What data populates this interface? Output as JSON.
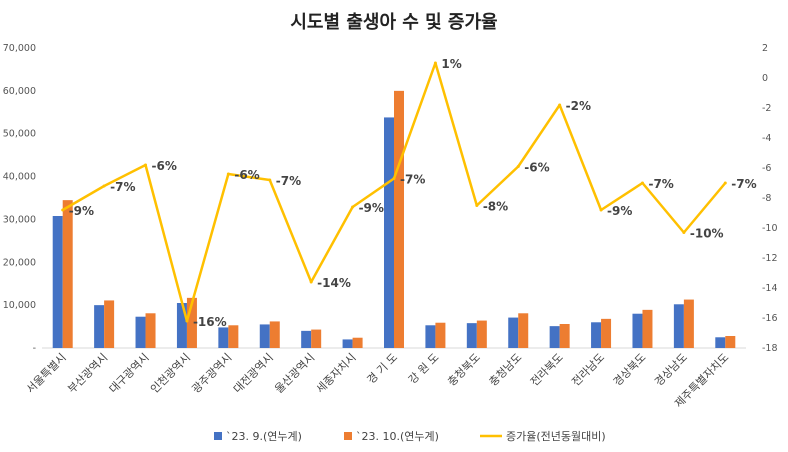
{
  "chart_data": {
    "type": "bar",
    "title": "시도별 출생아 수 및 증가율",
    "categories": [
      "서울특별시",
      "부산광역시",
      "대구광역시",
      "인천광역시",
      "광주광역시",
      "대전광역시",
      "울산광역시",
      "세종자치시",
      "경 기 도",
      "강 원 도",
      "충청북도",
      "충청남도",
      "전라북도",
      "전라남도",
      "경상북도",
      "경상남도",
      "제주특별자치도"
    ],
    "series": [
      {
        "name": "`23. 9.(연누계)",
        "color": "#4472C4",
        "axis": "left",
        "values": [
          30800,
          10000,
          7300,
          10500,
          4800,
          5500,
          4000,
          2000,
          53800,
          5300,
          5800,
          7100,
          5100,
          6000,
          8000,
          10200,
          2500
        ]
      },
      {
        "name": "`23. 10.(연누계)",
        "color": "#ED7D31",
        "axis": "left",
        "values": [
          34500,
          11100,
          8100,
          11700,
          5300,
          6200,
          4300,
          2400,
          60000,
          5900,
          6400,
          8100,
          5600,
          6800,
          8900,
          11300,
          2800
        ]
      },
      {
        "name": "증가율(전년동월대비)",
        "color": "#FFC000",
        "type": "line",
        "axis": "right",
        "values": [
          -8.8,
          -7.2,
          -5.8,
          -16.2,
          -6.4,
          -6.8,
          -13.6,
          -8.6,
          -6.7,
          1.0,
          -8.5,
          -5.9,
          -1.8,
          -8.8,
          -7.0,
          -10.3,
          -7.0
        ]
      }
    ],
    "pct_labels": [
      "-9%",
      "-7%",
      "-6%",
      "-16%",
      "-6%",
      "-7%",
      "-14%",
      "-9%",
      "-7%",
      "1%",
      "-8%",
      "-6%",
      "-2%",
      "-9%",
      "-7%",
      "-10%",
      "-7%"
    ],
    "y_left": {
      "min": 0,
      "max": 70000,
      "step": 10000,
      "ticks": [
        "-",
        "10,000",
        "20,000",
        "30,000",
        "40,000",
        "50,000",
        "60,000",
        "70,000"
      ]
    },
    "y_right": {
      "min": -18,
      "max": 2,
      "step": 2,
      "ticks": [
        "-18",
        "-16",
        "-14",
        "-12",
        "-10",
        "-8",
        "-6",
        "-4",
        "-2",
        "0",
        "2"
      ]
    },
    "legend": [
      "`23. 9.(연누계)",
      "`23. 10.(연누계)",
      "증가율(전년동월대비)"
    ],
    "legend_position": "bottom",
    "grid": false
  }
}
